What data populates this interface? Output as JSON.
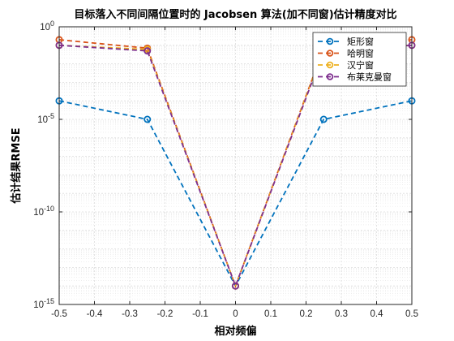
{
  "chart_data": {
    "type": "line",
    "title": "目标落入不同间隔位置时的 Jacobsen 算法(加不同窗)估计精度对比",
    "xlabel": "相对频偏",
    "ylabel": "估计结果RMSE",
    "yscale": "log",
    "xlim": [
      -0.5,
      0.5
    ],
    "ylim_exponent": [
      -15,
      0
    ],
    "xticks": [
      "-0.5",
      "-0.4",
      "-0.3",
      "-0.2",
      "-0.1",
      "0",
      "0.1",
      "0.2",
      "0.3",
      "0.4",
      "0.5"
    ],
    "ytick_base": "10",
    "ytick_exponents": [
      "0",
      "-5",
      "-10",
      "-15"
    ],
    "grid": true,
    "legend_position": "top-right",
    "x": [
      -0.5,
      -0.25,
      0,
      0.25,
      0.5
    ],
    "series": [
      {
        "name": "矩形窗",
        "color": "#0072BD",
        "values": [
          0.0001,
          1e-05,
          1e-14,
          1e-05,
          0.0001
        ]
      },
      {
        "name": "哈明窗",
        "color": "#D95319",
        "values": [
          0.2,
          0.07,
          1e-14,
          0.07,
          0.2
        ]
      },
      {
        "name": "汉宁窗",
        "color": "#EDB120",
        "values": [
          0.1,
          0.06,
          1e-14,
          0.06,
          0.1
        ]
      },
      {
        "name": "布莱克曼窗",
        "color": "#7E2F8E",
        "values": [
          0.1,
          0.05,
          1e-14,
          0.05,
          0.1
        ]
      }
    ]
  }
}
